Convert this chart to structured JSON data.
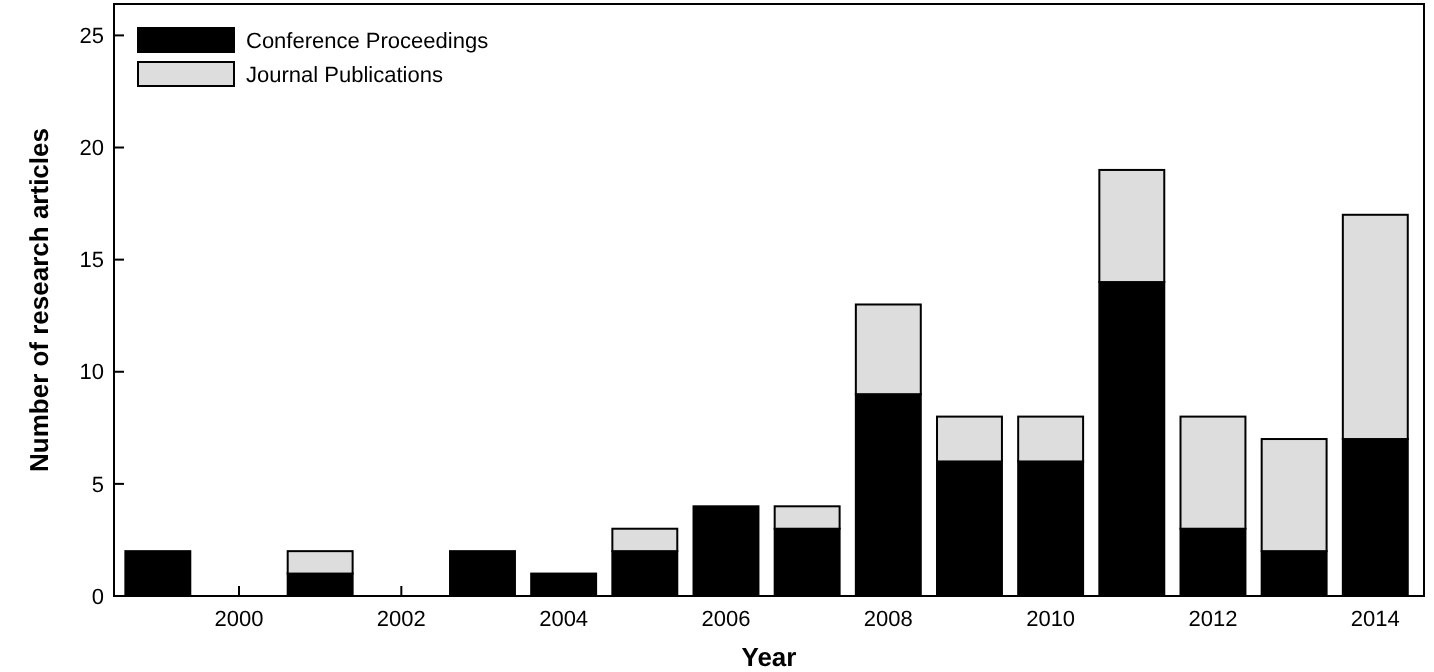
{
  "chart_data": {
    "type": "bar",
    "stacked": true,
    "xlabel": "Year",
    "ylabel": "Number of research articles",
    "x": [
      1999,
      2000,
      2001,
      2002,
      2003,
      2004,
      2005,
      2006,
      2007,
      2008,
      2009,
      2010,
      2011,
      2012,
      2013,
      2014
    ],
    "series": [
      {
        "name": "Conference Proceedings",
        "color": "#000000",
        "values": [
          2,
          0,
          1,
          0,
          2,
          1,
          2,
          4,
          3,
          9,
          6,
          6,
          14,
          3,
          2,
          7
        ]
      },
      {
        "name": "Journal Publications",
        "color": "#dddddd",
        "values": [
          0,
          0,
          1,
          0,
          0,
          0,
          1,
          0,
          1,
          4,
          2,
          2,
          5,
          5,
          5,
          10
        ]
      }
    ],
    "xlim": [
      1998.46,
      2014.6
    ],
    "xticks": [
      2000,
      2002,
      2004,
      2006,
      2008,
      2010,
      2012,
      2014
    ],
    "ylim": [
      0,
      26.4
    ],
    "yticks": [
      0,
      5,
      10,
      15,
      20,
      25
    ],
    "grid": false,
    "legend": "top left"
  }
}
